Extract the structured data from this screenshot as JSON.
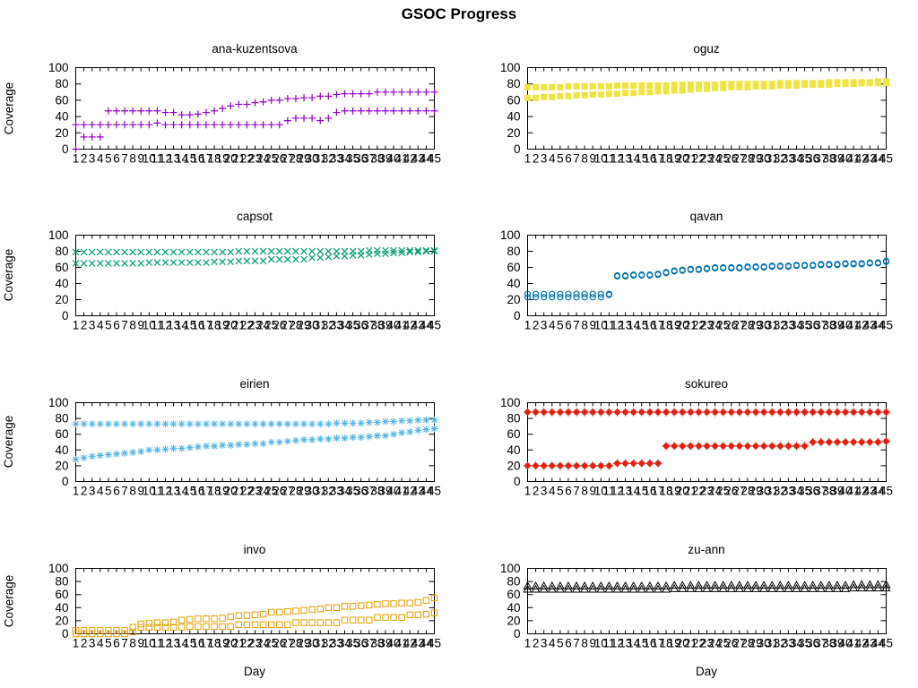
{
  "page_title": "GSOC Progress",
  "chart_data": {
    "type": "scatter",
    "title": "GSOC Progress",
    "layout": "grid-4-rows-2-cols",
    "grid": false,
    "legend": "none",
    "x": {
      "label": "Day",
      "min": 1,
      "max": 45,
      "ticks": [
        1,
        2,
        3,
        4,
        5,
        6,
        7,
        8,
        9,
        10,
        11,
        12,
        13,
        14,
        15,
        16,
        17,
        18,
        19,
        20,
        21,
        22,
        23,
        24,
        25,
        26,
        27,
        28,
        29,
        30,
        31,
        32,
        33,
        34,
        35,
        36,
        37,
        38,
        39,
        40,
        41,
        42,
        43,
        44,
        45
      ]
    },
    "y": {
      "label": "Coverage",
      "min": 0,
      "max": 100,
      "ticks": [
        0,
        20,
        40,
        60,
        80,
        100
      ]
    },
    "subplots": [
      {
        "title": "ana-kuzentsova",
        "color": "#9400d3",
        "marker": "plus",
        "series": [
          {
            "values": [
              0,
              15,
              15,
              15,
              47,
              47,
              47,
              47,
              47,
              47,
              47,
              45,
              45,
              42,
              42,
              43,
              45,
              47,
              50,
              53,
              55,
              55,
              57,
              58,
              60,
              60,
              62,
              62,
              63,
              63,
              65,
              65,
              67,
              68,
              68,
              68,
              68,
              70,
              70,
              70,
              70,
              70,
              70,
              70,
              70
            ]
          },
          {
            "values": [
              30,
              30,
              30,
              30,
              30,
              30,
              30,
              30,
              30,
              30,
              32,
              30,
              30,
              30,
              30,
              30,
              30,
              30,
              30,
              30,
              30,
              30,
              30,
              30,
              30,
              30,
              35,
              38,
              38,
              38,
              35,
              38,
              45,
              47,
              47,
              47,
              47,
              47,
              47,
              47,
              47,
              47,
              47,
              47,
              47
            ]
          }
        ]
      },
      {
        "title": "oguz",
        "color": "#f0e442",
        "marker": "square-filled",
        "series": [
          {
            "values": [
              76,
              76,
              76,
              76,
              76,
              77,
              77,
              77,
              77,
              77,
              77,
              78,
              78,
              78,
              78,
              78,
              78,
              78,
              79,
              79,
              79,
              79,
              79,
              79,
              80,
              80,
              80,
              80,
              80,
              80,
              80,
              81,
              81,
              81,
              81,
              81,
              81,
              82,
              82,
              82,
              82,
              82,
              82,
              83,
              83
            ]
          },
          {
            "values": [
              63,
              63,
              64,
              64,
              65,
              65,
              66,
              66,
              67,
              67,
              68,
              68,
              69,
              69,
              70,
              70,
              71,
              71,
              72,
              72,
              73,
              74,
              74,
              75,
              75,
              76,
              76,
              76,
              77,
              77,
              77,
              78,
              78,
              78,
              79,
              79,
              79,
              79,
              80,
              80,
              80,
              81,
              81,
              81,
              81
            ]
          }
        ]
      },
      {
        "title": "capsot",
        "color": "#009e73",
        "marker": "cross",
        "series": [
          {
            "values": [
              79,
              79,
              79,
              79,
              79,
              79,
              79,
              79,
              79,
              79,
              79,
              79,
              79,
              79,
              79,
              79,
              79,
              79,
              79,
              79,
              80,
              80,
              80,
              80,
              80,
              80,
              80,
              80,
              80,
              80,
              80,
              80,
              80,
              80,
              80,
              80,
              81,
              81,
              81,
              81,
              81,
              81,
              81,
              81,
              81
            ]
          },
          {
            "values": [
              65,
              65,
              65,
              65,
              65,
              65,
              65,
              65,
              65,
              66,
              66,
              66,
              66,
              66,
              66,
              66,
              66,
              67,
              67,
              67,
              68,
              68,
              68,
              68,
              70,
              70,
              70,
              70,
              70,
              72,
              72,
              73,
              74,
              74,
              75,
              75,
              76,
              77,
              77,
              78,
              78,
              79,
              79,
              80,
              80
            ]
          }
        ]
      },
      {
        "title": "qavan",
        "color": "#0072b2",
        "marker": "circle-open",
        "series": [
          {
            "values": [
              27,
              27,
              27,
              27,
              27,
              27,
              27,
              27,
              27,
              27,
              27,
              50,
              50,
              51,
              51,
              51,
              52,
              54,
              56,
              57,
              58,
              58,
              59,
              60,
              60,
              60,
              60,
              61,
              61,
              61,
              62,
              62,
              62,
              63,
              63,
              63,
              64,
              64,
              64,
              65,
              65,
              65,
              66,
              66,
              68
            ]
          },
          {
            "values": [
              23,
              23,
              23,
              23,
              23,
              23,
              23,
              23,
              23,
              23,
              26,
              49,
              49,
              50,
              50,
              50,
              51,
              53,
              55,
              56,
              57,
              57,
              58,
              59,
              59,
              59,
              59,
              60,
              60,
              60,
              61,
              61,
              61,
              62,
              62,
              62,
              63,
              63,
              63,
              64,
              64,
              64,
              65,
              65,
              67
            ]
          }
        ]
      },
      {
        "title": "eirien",
        "color": "#56b4e9",
        "marker": "asterisk",
        "series": [
          {
            "values": [
              73,
              73,
              73,
              73,
              73,
              73,
              73,
              73,
              73,
              73,
              73,
              73,
              73,
              73,
              73,
              73,
              73,
              73,
              73,
              73,
              73,
              73,
              73,
              73,
              73,
              73,
              73,
              73,
              73,
              73,
              73,
              73,
              74,
              74,
              74,
              74,
              75,
              75,
              76,
              76,
              77,
              77,
              78,
              78,
              78
            ]
          },
          {
            "values": [
              28,
              30,
              32,
              33,
              34,
              35,
              36,
              37,
              38,
              40,
              40,
              41,
              42,
              42,
              43,
              44,
              45,
              45,
              46,
              46,
              47,
              47,
              48,
              48,
              50,
              50,
              51,
              52,
              53,
              53,
              54,
              54,
              55,
              55,
              56,
              56,
              57,
              58,
              58,
              60,
              62,
              63,
              65,
              66,
              67
            ]
          }
        ]
      },
      {
        "title": "sokureo",
        "color": "#e51e10",
        "marker": "circle-filled",
        "series": [
          {
            "values": [
              88,
              88,
              88,
              88,
              88,
              88,
              88,
              88,
              88,
              88,
              88,
              88,
              88,
              88,
              88,
              88,
              88,
              88,
              88,
              88,
              88,
              88,
              88,
              88,
              88,
              88,
              88,
              88,
              88,
              88,
              88,
              88,
              88,
              88,
              88,
              88,
              88,
              88,
              88,
              88,
              88,
              88,
              88,
              88,
              88
            ]
          },
          {
            "values": [
              20,
              20,
              20,
              20,
              20,
              20,
              20,
              20,
              20,
              20,
              20,
              23,
              23,
              23,
              23,
              23,
              23,
              45,
              45,
              45,
              45,
              45,
              45,
              45,
              45,
              45,
              45,
              45,
              45,
              45,
              45,
              45,
              45,
              45,
              45,
              50,
              50,
              50,
              50,
              50,
              50,
              50,
              50,
              50,
              51
            ]
          }
        ]
      },
      {
        "title": "invo",
        "color": "#e69f00",
        "marker": "square-open",
        "series": [
          {
            "values": [
              5,
              5,
              5,
              5,
              5,
              5,
              5,
              10,
              15,
              16,
              17,
              17,
              18,
              21,
              22,
              23,
              23,
              23,
              24,
              26,
              28,
              28,
              29,
              30,
              33,
              33,
              34,
              35,
              36,
              37,
              38,
              40,
              40,
              42,
              42,
              43,
              44,
              45,
              46,
              46,
              47,
              47,
              48,
              51,
              55
            ]
          },
          {
            "values": [
              0,
              0,
              0,
              0,
              0,
              0,
              0,
              3,
              10,
              10,
              10,
              10,
              10,
              10,
              11,
              11,
              11,
              11,
              11,
              11,
              14,
              14,
              14,
              14,
              14,
              14,
              14,
              17,
              17,
              17,
              17,
              17,
              17,
              21,
              21,
              21,
              21,
              25,
              25,
              25,
              25,
              29,
              29,
              30,
              32
            ]
          }
        ]
      },
      {
        "title": "zu-ann",
        "color": "#000000",
        "marker": "triangle-open",
        "series": [
          {
            "values": [
              73,
              73,
              73,
              73,
              73,
              73,
              73,
              73,
              73,
              73,
              73,
              73,
              73,
              73,
              73,
              73,
              73,
              73,
              74,
              74,
              74,
              74,
              74,
              74,
              74,
              74,
              74,
              74,
              74,
              74,
              74,
              74,
              74,
              74,
              74,
              74,
              74,
              74,
              74,
              74,
              75,
              75,
              75,
              75,
              75
            ]
          },
          {
            "values": [
              68,
              68,
              68,
              68,
              68,
              68,
              68,
              68,
              68,
              68,
              68,
              68,
              68,
              68,
              68,
              68,
              68,
              68,
              69,
              69,
              69,
              69,
              69,
              69,
              69,
              69,
              69,
              69,
              69,
              69,
              69,
              69,
              69,
              69,
              69,
              69,
              69,
              69,
              69,
              69,
              70,
              70,
              70,
              70,
              70
            ]
          }
        ]
      }
    ]
  }
}
